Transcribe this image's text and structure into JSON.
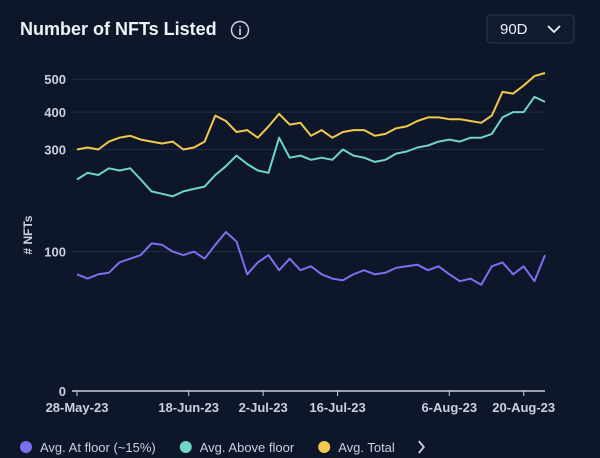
{
  "chart_data": {
    "type": "line",
    "title": "Number of NFTs Listed",
    "period": "90D",
    "y_label": "# NFTs",
    "y_scale": "sqrt",
    "x": [
      "2023-05-28",
      "2023-05-30",
      "2023-06-01",
      "2023-06-03",
      "2023-06-05",
      "2023-06-07",
      "2023-06-09",
      "2023-06-11",
      "2023-06-13",
      "2023-06-15",
      "2023-06-17",
      "2023-06-19",
      "2023-06-21",
      "2023-06-23",
      "2023-06-25",
      "2023-06-27",
      "2023-06-29",
      "2023-07-01",
      "2023-07-03",
      "2023-07-05",
      "2023-07-07",
      "2023-07-09",
      "2023-07-11",
      "2023-07-13",
      "2023-07-15",
      "2023-07-17",
      "2023-07-19",
      "2023-07-21",
      "2023-07-23",
      "2023-07-25",
      "2023-07-27",
      "2023-07-29",
      "2023-07-31",
      "2023-08-02",
      "2023-08-04",
      "2023-08-06",
      "2023-08-08",
      "2023-08-10",
      "2023-08-12",
      "2023-08-14",
      "2023-08-16",
      "2023-08-18",
      "2023-08-20",
      "2023-08-22",
      "2023-08-24"
    ],
    "xlim": [
      "2023-05-28",
      "2023-08-24"
    ],
    "xticks": [
      {
        "value": "2023-05-28",
        "label": "28-May-23"
      },
      {
        "value": "2023-06-18",
        "label": "18-Jun-23"
      },
      {
        "value": "2023-07-02",
        "label": "2-Jul-23"
      },
      {
        "value": "2023-07-16",
        "label": "16-Jul-23"
      },
      {
        "value": "2023-08-06",
        "label": "6-Aug-23"
      },
      {
        "value": "2023-08-20",
        "label": "20-Aug-23"
      }
    ],
    "ylim": [
      0,
      530
    ],
    "yticks": [
      0,
      100,
      300,
      400,
      500
    ],
    "grid": true,
    "series": [
      {
        "name": "Avg. At floor (~15%)",
        "color": "#7b6ff0",
        "values": [
          70,
          65,
          70,
          72,
          85,
          90,
          95,
          112,
          110,
          100,
          95,
          100,
          90,
          110,
          130,
          115,
          70,
          85,
          95,
          75,
          90,
          75,
          80,
          70,
          65,
          63,
          70,
          75,
          70,
          72,
          78,
          80,
          82,
          75,
          80,
          70,
          62,
          65,
          58,
          80,
          85,
          70,
          80,
          62,
          95
        ]
      },
      {
        "name": "Avg. Above floor",
        "color": "#6fd6c6",
        "values": [
          230,
          245,
          240,
          255,
          250,
          255,
          230,
          205,
          200,
          195,
          205,
          210,
          215,
          240,
          260,
          285,
          265,
          250,
          245,
          330,
          280,
          285,
          275,
          280,
          275,
          300,
          285,
          280,
          270,
          275,
          290,
          295,
          305,
          310,
          320,
          325,
          320,
          330,
          330,
          340,
          385,
          400,
          400,
          445,
          430
        ]
      },
      {
        "name": "Avg. Total",
        "color": "#f2c94c",
        "values": [
          300,
          305,
          300,
          320,
          330,
          335,
          325,
          320,
          315,
          320,
          300,
          305,
          320,
          390,
          375,
          345,
          350,
          330,
          360,
          395,
          365,
          370,
          335,
          350,
          330,
          345,
          350,
          350,
          335,
          340,
          355,
          360,
          375,
          385,
          385,
          380,
          380,
          375,
          370,
          390,
          460,
          455,
          480,
          510,
          520
        ]
      }
    ]
  }
}
